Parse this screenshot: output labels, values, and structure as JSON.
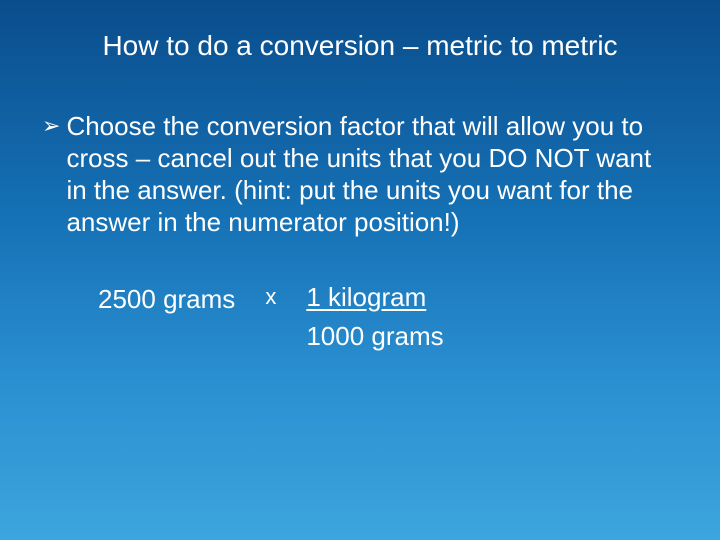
{
  "title": "How to do a conversion – metric to metric",
  "bullet": {
    "marker": "➢",
    "text": "Choose the conversion factor that will allow you to cross – cancel out the units that you DO NOT want in the answer.  (hint:  put the units you want for the answer in the numerator position!)"
  },
  "equation": {
    "left": "2500 grams",
    "multiply": "x",
    "numerator": "1 kilogram",
    "denominator": "1000 grams"
  },
  "style": {
    "bg_gradient_top": "#0a4d8c",
    "bg_gradient_bottom": "#3da5de",
    "text_color": "#ffffff",
    "title_fontsize": 28,
    "body_fontsize": 26
  }
}
